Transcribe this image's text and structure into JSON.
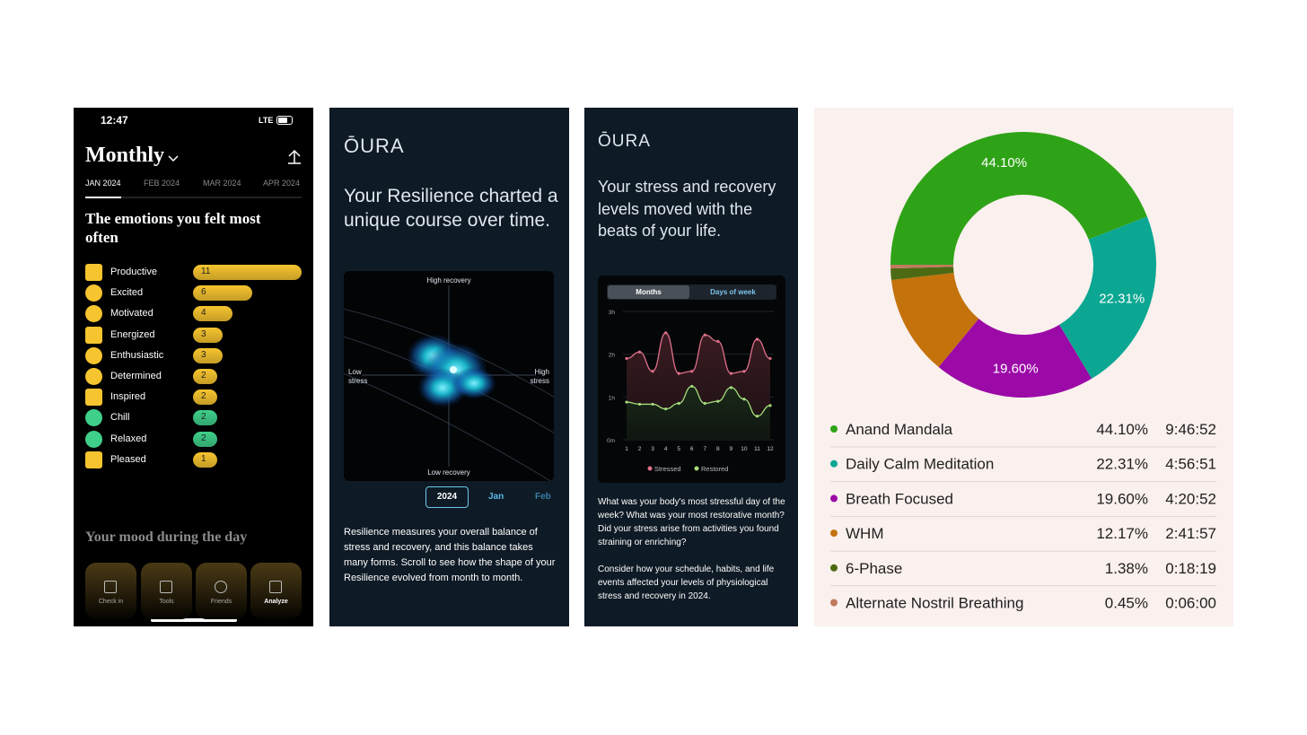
{
  "status_bar": {
    "time": "12:47",
    "network": "LTE"
  },
  "mood_app": {
    "title": "Monthly",
    "tabs": [
      "JAN 2024",
      "FEB 2024",
      "MAR 2024",
      "APR 2024"
    ],
    "heading": "The emotions you felt most often",
    "emotions": {
      "type": "bar",
      "categories": [
        "Productive",
        "Excited",
        "Motivated",
        "Energized",
        "Enthusiastic",
        "Determined",
        "Inspired",
        "Chill",
        "Relaxed",
        "Pleased"
      ],
      "values": [
        11,
        6,
        4,
        3,
        3,
        2,
        2,
        2,
        2,
        1
      ],
      "colors": [
        "#f6c42f",
        "#f6c42f",
        "#f6c42f",
        "#f6c42f",
        "#f6c42f",
        "#f6c42f",
        "#f6c42f",
        "#3fcf8a",
        "#3fcf8a",
        "#f6c42f"
      ]
    },
    "section": "Your mood during the day",
    "nav": [
      "Check in",
      "Tools",
      "Friends",
      "Analyze"
    ]
  },
  "resilience": {
    "logo": "ŌURA",
    "headline": "Your Resilience charted a unique course over time.",
    "chart_labels": {
      "top": "High recovery",
      "left": "Low stress",
      "right": "High stress",
      "bottom": "Low recovery"
    },
    "periods": [
      "2024",
      "Jan",
      "Feb"
    ],
    "body": "Resilience measures your overall balance of stress and recovery, and this balance takes many forms. Scroll to see how the shape of your Resilience evolved from month to month."
  },
  "stress": {
    "logo": "ŌURA",
    "headline": "Your stress and recovery levels moved with the beats of your life.",
    "chart": {
      "type": "line",
      "toggle": [
        "Months",
        "Days of week"
      ],
      "x": [
        1,
        2,
        3,
        4,
        5,
        6,
        7,
        8,
        9,
        10,
        11,
        12
      ],
      "xlim": [
        1,
        12
      ],
      "ylim": [
        0,
        3
      ],
      "yticks": [
        {
          "value": 0,
          "label": "0m"
        },
        {
          "value": 1,
          "label": "1h"
        },
        {
          "value": 2,
          "label": "2h"
        },
        {
          "value": 3,
          "label": "3h"
        }
      ],
      "series": [
        {
          "name": "Stressed",
          "color": "#e0708a",
          "values": [
            1.9,
            2.05,
            1.6,
            2.5,
            1.55,
            1.6,
            2.45,
            2.3,
            1.55,
            1.6,
            2.35,
            1.9
          ]
        },
        {
          "name": "Restored",
          "color": "#a6dc7c",
          "values": [
            0.88,
            0.83,
            0.83,
            0.72,
            0.85,
            1.25,
            0.85,
            0.9,
            1.22,
            0.95,
            0.55,
            0.8
          ]
        }
      ]
    },
    "body": [
      "What was your body's most stressful day of the week? What was your most restorative month? Did your stress arise from activities you found straining or enriching?",
      "Consider how your schedule, habits, and life events affected your levels of physiological stress and recovery in 2024."
    ]
  },
  "meditation": {
    "chart": {
      "type": "pie",
      "categories": [
        "Anand Mandala",
        "Daily Calm Meditation",
        "Breath Focused",
        "WHM",
        "6-Phase",
        "Alternate Nostril Breathing"
      ],
      "values": [
        44.1,
        22.31,
        19.6,
        12.17,
        1.38,
        0.45
      ],
      "value_labels": [
        "44.10%",
        "22.31%",
        "19.60%",
        "12.17%",
        "1.38%",
        "0.45%"
      ],
      "durations": [
        "9:46:52",
        "4:56:51",
        "4:20:52",
        "2:41:57",
        "0:18:19",
        "0:06:00"
      ],
      "colors": [
        "#2fa317",
        "#0ba792",
        "#9b0aa7",
        "#c4720b",
        "#4c6a13",
        "#c07a5e"
      ]
    }
  }
}
